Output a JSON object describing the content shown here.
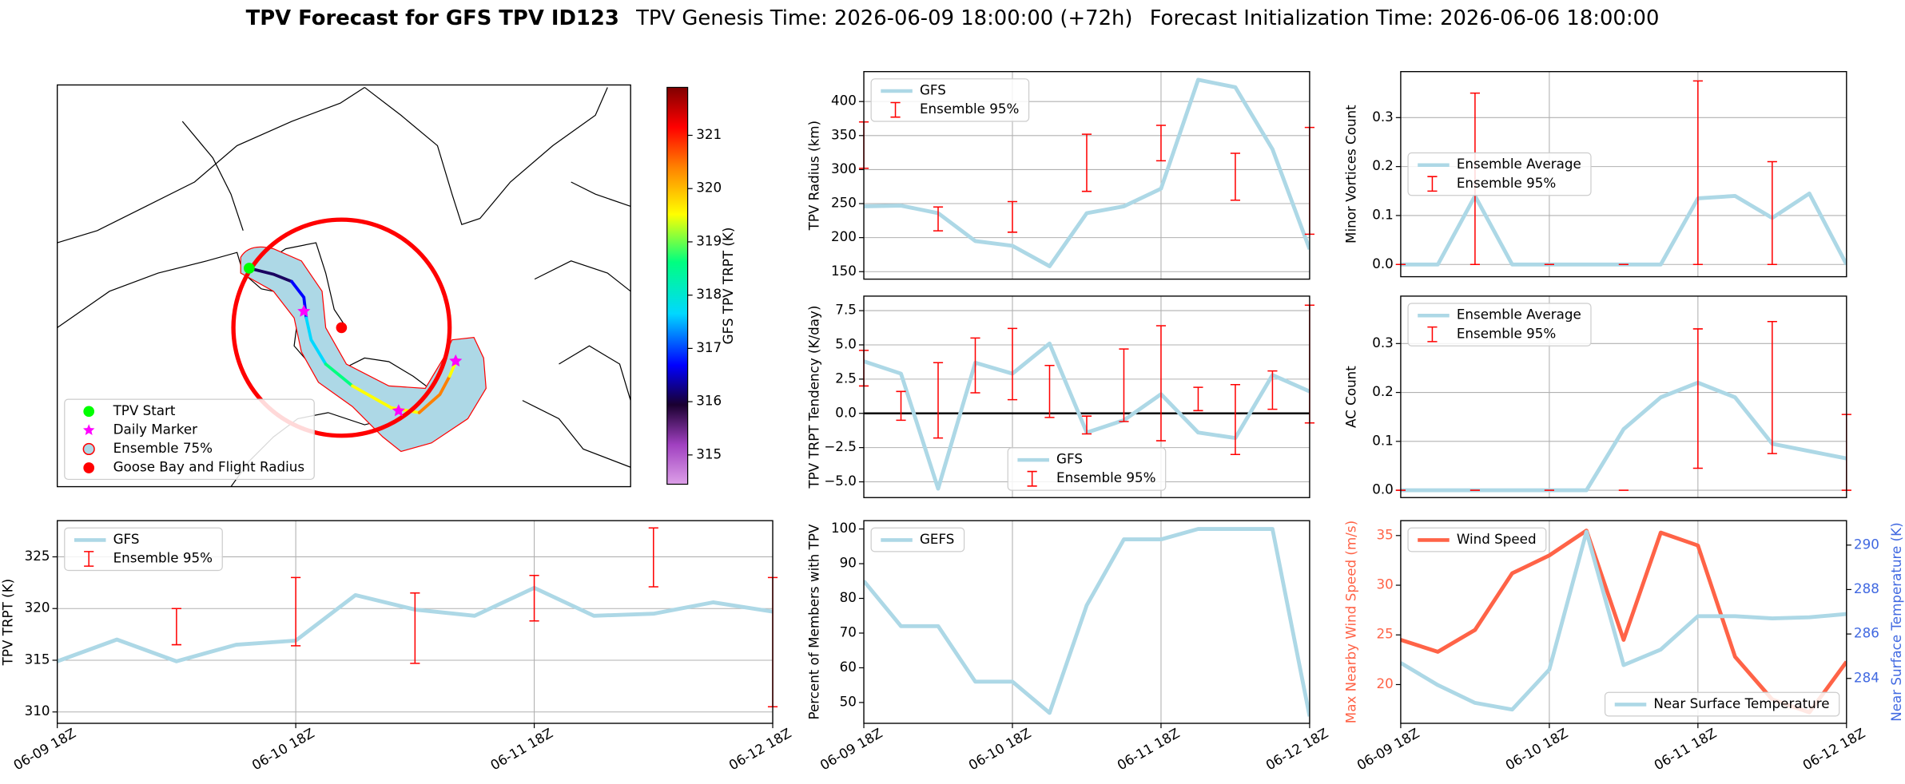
{
  "title": {
    "main": "TPV Forecast for GFS TPV ID123",
    "genesis": "TPV Genesis Time: 2026-06-09 18:00:00 (+72h)",
    "init": "Forecast Initialization Time: 2026-06-06 18:00:00"
  },
  "chart_data": [
    {
      "type": "map",
      "legend": "lower left",
      "series": [
        {
          "name": "TPV Start",
          "color": "#00ff00",
          "marker": "circle"
        },
        {
          "name": "Daily Marker",
          "color": "#ff00ff",
          "marker": "star"
        },
        {
          "name": "Ensemble 75%",
          "color": "#add8e6",
          "edgecolor": "#ff0000",
          "marker": "circle"
        },
        {
          "name": "Goose Bay and Flight Radius",
          "color": "#ff0000",
          "marker": "circle"
        }
      ],
      "colorbar": {
        "label": "GFS TPV TRPT (K)",
        "lim": [
          314.45,
          321.9
        ],
        "ticks": [
          315,
          316,
          317,
          318,
          319,
          320,
          321
        ]
      }
    },
    {
      "type": "line",
      "ylabel": "TPV Radius (km)",
      "ylim": [
        139,
        444
      ],
      "yticks": [
        150,
        200,
        250,
        300,
        350,
        400
      ],
      "grid": "both",
      "legend": "upper left",
      "categories": [
        null,
        null,
        null,
        null,
        null,
        null,
        null,
        null,
        null,
        null,
        null,
        null,
        null
      ],
      "series": [
        {
          "name": "GFS",
          "color": "#add8e6",
          "values": [
            246,
            247,
            236,
            195,
            188,
            158,
            236,
            246,
            272,
            432,
            421,
            330,
            183
          ]
        },
        {
          "name": "Ensemble 95%",
          "color": "#ff0000",
          "low": [
            302,
            null,
            210,
            null,
            208,
            null,
            268,
            null,
            313,
            null,
            255,
            null,
            205
          ],
          "high": [
            370,
            null,
            245,
            null,
            253,
            null,
            352,
            null,
            365,
            null,
            324,
            null,
            362
          ]
        }
      ]
    },
    {
      "type": "line",
      "ylabel": "TPV TRPT Tendency (K/day)",
      "ylim": [
        -6.15,
        8.56
      ],
      "yticks": [
        {
          "value": -5,
          "label": "−5.0"
        },
        {
          "value": -2.5,
          "label": "−2.5"
        },
        {
          "value": 0,
          "label": "0.0"
        },
        2.5,
        {
          "value": 5,
          "label": "5.0"
        },
        7.5
      ],
      "grid": "both",
      "legend": "lower center",
      "hline": 0,
      "categories": [
        null,
        null,
        null,
        null,
        null,
        null,
        null,
        null,
        null,
        null,
        null,
        null,
        null
      ],
      "series": [
        {
          "name": "GFS",
          "color": "#add8e6",
          "values": [
            3.8,
            2.9,
            -5.5,
            3.7,
            2.9,
            5.1,
            -1.4,
            -0.5,
            1.4,
            -1.4,
            -1.8,
            2.8,
            1.6
          ]
        },
        {
          "name": "Ensemble 95%",
          "color": "#ff0000",
          "low": [
            2.0,
            -0.5,
            -1.8,
            1.5,
            1.0,
            -0.3,
            -1.5,
            -0.6,
            -2.0,
            0.2,
            -3.0,
            0.3,
            -0.7
          ],
          "high": [
            4.6,
            1.6,
            3.7,
            5.5,
            6.2,
            3.5,
            -0.2,
            4.7,
            6.4,
            1.9,
            2.1,
            3.1,
            7.9
          ]
        }
      ]
    },
    {
      "type": "line",
      "ylabel": "Percent of Members with TPV",
      "ylim": [
        44,
        102.4
      ],
      "yticks": [
        50,
        60,
        70,
        80,
        90,
        100
      ],
      "grid": "x",
      "legend": "upper left",
      "categories": [
        "06-09 18Z",
        null,
        null,
        null,
        "06-10 18Z",
        null,
        null,
        null,
        "06-11 18Z",
        null,
        null,
        null,
        "06-12 18Z"
      ],
      "series": [
        {
          "name": "GEFS",
          "color": "#add8e6",
          "values": [
            85,
            72,
            72,
            56,
            56,
            47,
            78,
            97,
            97,
            100,
            100,
            100,
            46
          ]
        }
      ]
    },
    {
      "type": "line",
      "ylabel": "Minor Vortices Count",
      "ylim": [
        -0.025,
        0.394
      ],
      "yticks": [
        {
          "value": 0,
          "label": "0.0"
        },
        0.1,
        0.2,
        0.3
      ],
      "grid": "both",
      "legend": "center left",
      "categories": [
        null,
        null,
        null,
        null,
        null,
        null,
        null,
        null,
        null,
        null,
        null,
        null,
        null
      ],
      "series": [
        {
          "name": "Ensemble Average",
          "color": "#add8e6",
          "values": [
            0,
            0,
            0.14,
            0,
            0,
            0,
            0,
            0,
            0.135,
            0.14,
            0.095,
            0.145,
            0
          ]
        },
        {
          "name": "Ensemble 95%",
          "color": "#ff0000",
          "low": [
            0,
            null,
            0,
            null,
            0,
            null,
            0,
            null,
            0,
            null,
            0,
            null,
            null
          ],
          "high": [
            0,
            null,
            0.35,
            null,
            0,
            null,
            0,
            null,
            0.375,
            null,
            0.21,
            null,
            null
          ]
        }
      ]
    },
    {
      "type": "line",
      "ylabel": "AC Count",
      "ylim": [
        -0.015,
        0.397
      ],
      "yticks": [
        {
          "value": 0,
          "label": "0.0"
        },
        0.1,
        0.2,
        0.3
      ],
      "grid": "both",
      "legend": "upper left",
      "categories": [
        null,
        null,
        null,
        null,
        null,
        null,
        null,
        null,
        null,
        null,
        null,
        null,
        null
      ],
      "series": [
        {
          "name": "Ensemble Average",
          "color": "#add8e6",
          "values": [
            0,
            0,
            0,
            0,
            0,
            0,
            0.125,
            0.19,
            0.22,
            0.19,
            0.095,
            0.08,
            0.065
          ]
        },
        {
          "name": "Ensemble 95%",
          "color": "#ff0000",
          "low": [
            0,
            null,
            0,
            null,
            0,
            null,
            0,
            null,
            0.045,
            null,
            0.075,
            null,
            0
          ],
          "high": [
            0,
            null,
            0,
            null,
            0,
            null,
            0,
            null,
            0.33,
            null,
            0.345,
            null,
            0.155
          ]
        }
      ]
    },
    {
      "type": "line",
      "ylabel": "Max Nearby Wind Speed (m/s)",
      "ylabel_color": "#ff6347",
      "ylim": [
        16.1,
        36.5
      ],
      "yticks": [
        20,
        25,
        30,
        35
      ],
      "y2label": "Near Surface Temperature (K)",
      "y2label_color": "#4169e1",
      "y2lim": [
        281.98,
        291.1
      ],
      "y2ticks": [
        284,
        286,
        288,
        290
      ],
      "grid": "x",
      "legend": "upper left",
      "legend2": "lower right",
      "categories": [
        "06-09 18Z",
        null,
        null,
        null,
        "06-10 18Z",
        null,
        null,
        null,
        "06-11 18Z",
        null,
        null,
        null,
        "06-12 18Z"
      ],
      "series": [
        {
          "name": "Wind Speed",
          "color": "#ff6347",
          "values": [
            24.5,
            23.3,
            25.5,
            31.2,
            33,
            35.5,
            24.5,
            35.3,
            34,
            22.8,
            18.5,
            17.2,
            22.3
          ]
        },
        {
          "name": "Near Surface Temperature",
          "color": "#add8e6",
          "axis": "y2",
          "values": [
            284.7,
            283.7,
            282.9,
            282.6,
            284.4,
            290.6,
            284.6,
            285.3,
            286.8,
            286.8,
            286.7,
            286.75,
            286.9
          ]
        }
      ]
    },
    {
      "type": "line",
      "ylabel": "TPV TRPT (K)",
      "ylim": [
        308.9,
        328.5
      ],
      "yticks": [
        310,
        315,
        320,
        325
      ],
      "grid": "both",
      "legend": "upper left",
      "categories": [
        "06-09 18Z",
        null,
        null,
        null,
        "06-10 18Z",
        null,
        null,
        null,
        "06-11 18Z",
        null,
        null,
        null,
        "06-12 18Z"
      ],
      "series": [
        {
          "name": "GFS",
          "color": "#add8e6",
          "values": [
            314.9,
            317,
            314.9,
            316.5,
            316.9,
            321.3,
            319.9,
            319.3,
            322,
            319.3,
            319.5,
            320.6,
            319.7
          ]
        },
        {
          "name": "Ensemble 95%",
          "color": "#ff0000",
          "low": [
            null,
            null,
            316.5,
            null,
            316.4,
            null,
            314.7,
            null,
            318.8,
            null,
            322.1,
            null,
            310.5
          ],
          "high": [
            null,
            null,
            320,
            null,
            323,
            null,
            321.5,
            null,
            323.2,
            null,
            327.8,
            null,
            323
          ]
        }
      ]
    }
  ]
}
